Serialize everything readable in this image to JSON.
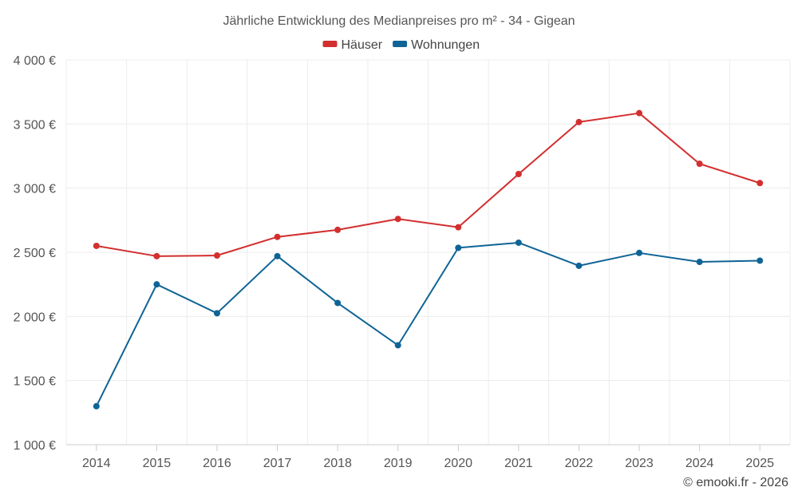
{
  "chart_data": {
    "type": "line",
    "title": "Jährliche Entwicklung des Medianpreises pro m² - 34 - Gigean",
    "categories": [
      "2014",
      "2015",
      "2016",
      "2017",
      "2018",
      "2019",
      "2020",
      "2021",
      "2022",
      "2023",
      "2024",
      "2025"
    ],
    "series": [
      {
        "name": "Häuser",
        "color": "#d32f2f",
        "values": [
          2550,
          2470,
          2475,
          2620,
          2675,
          2760,
          2695,
          3110,
          3515,
          3585,
          3190,
          3040
        ]
      },
      {
        "name": "Wohnungen",
        "color": "#0f6496",
        "values": [
          1300,
          2250,
          2025,
          2470,
          2105,
          1775,
          2535,
          2575,
          2395,
          2495,
          2425,
          2435
        ]
      }
    ],
    "ylim": [
      1000,
      4000
    ],
    "yticks": [
      1000,
      1500,
      2000,
      2500,
      3000,
      3500,
      4000
    ],
    "ytick_labels": [
      "1 000 €",
      "1 500 €",
      "2 000 €",
      "2 500 €",
      "3 000 €",
      "3 500 €",
      "4 000 €"
    ],
    "xlabel": "",
    "ylabel": "",
    "grid": true,
    "legend_position": "top-center",
    "credit": "© emooki.fr - 2026"
  }
}
